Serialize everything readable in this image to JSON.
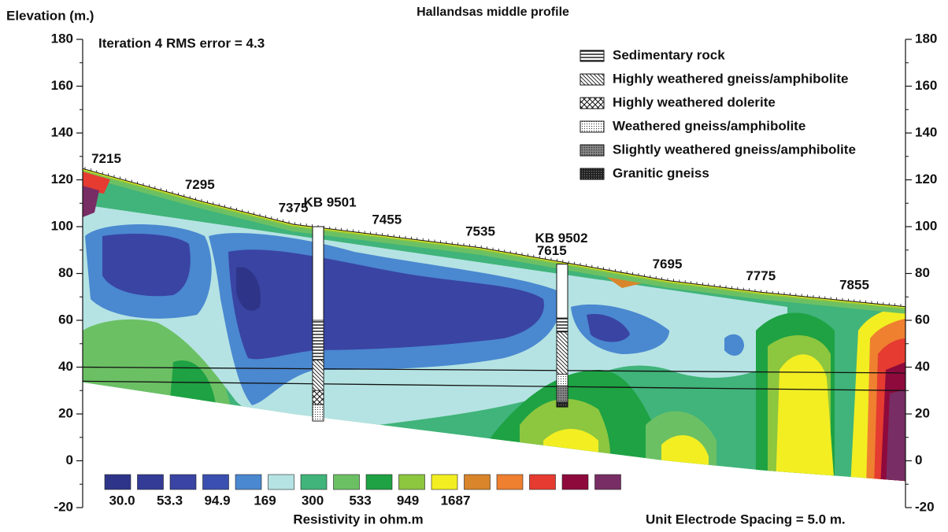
{
  "chart_data": {
    "type": "resistivity-section",
    "title": "Hallandsas middle profile",
    "y_label": "Elevation (m.)",
    "annotation": "Iteration 4 RMS error = 4.3",
    "ylim": [
      -20,
      180
    ],
    "yticks": [
      -20,
      0,
      20,
      40,
      60,
      80,
      100,
      120,
      140,
      160,
      180
    ],
    "stations": [
      "7215",
      "7295",
      "7375",
      "7455",
      "7535",
      "7615",
      "7695",
      "7775",
      "7855"
    ],
    "surface_elevation": [
      122,
      111,
      101,
      96,
      91,
      84,
      77,
      72,
      68
    ],
    "bottom_elevation": [
      32,
      26,
      20,
      15,
      10,
      5,
      0,
      -4,
      -7
    ],
    "reference_lines": [
      [
        40,
        37.5
      ],
      [
        34,
        30
      ]
    ],
    "legend": [
      "Sedimentary rock",
      "Highly weathered gneiss/amphibolite",
      "Highly weathered dolerite",
      "Weathered gneiss/amphibolite",
      "Slightly weathered gneiss/amphibolite",
      "Granitic gneiss"
    ],
    "boreholes": [
      {
        "name": "KB 9501",
        "top": 100,
        "intervals": [
          {
            "lithology": "Sedimentary rock",
            "from": 60,
            "to": 43
          },
          {
            "lithology": "Highly weathered gneiss/amphibolite",
            "from": 43,
            "to": 30
          },
          {
            "lithology": "Highly weathered dolerite",
            "from": 30,
            "to": 24
          },
          {
            "lithology": "Weathered gneiss/amphibolite",
            "from": 24,
            "to": 17
          }
        ]
      },
      {
        "name": "KB 9502",
        "top": 84,
        "intervals": [
          {
            "lithology": "Sedimentary rock",
            "from": 61,
            "to": 55
          },
          {
            "lithology": "Highly weathered gneiss/amphibolite",
            "from": 55,
            "to": 37
          },
          {
            "lithology": "Weathered gneiss/amphibolite",
            "from": 37,
            "to": 32
          },
          {
            "lithology": "Slightly weathered gneiss/amphibolite",
            "from": 32,
            "to": 25
          },
          {
            "lithology": "Granitic gneiss",
            "from": 25,
            "to": 23
          }
        ]
      }
    ],
    "colorbar": {
      "colors": [
        "#2e3589",
        "#333b96",
        "#3a44a3",
        "#3b4fb0",
        "#4a88d0",
        "#b5e3e3",
        "#40b47a",
        "#6cc064",
        "#1ea243",
        "#8dc63f",
        "#f2ee22",
        "#d9852b",
        "#ee8030",
        "#e53b30",
        "#8e0a3d",
        "#782d65"
      ],
      "ticks": [
        {
          "value": 30,
          "label": "30.0"
        },
        53.3,
        94.9,
        169,
        300,
        533,
        949,
        1687
      ],
      "label": "Resistivity in ohm.m"
    },
    "footnote": "Unit Electrode Spacing = 5.0 m."
  }
}
